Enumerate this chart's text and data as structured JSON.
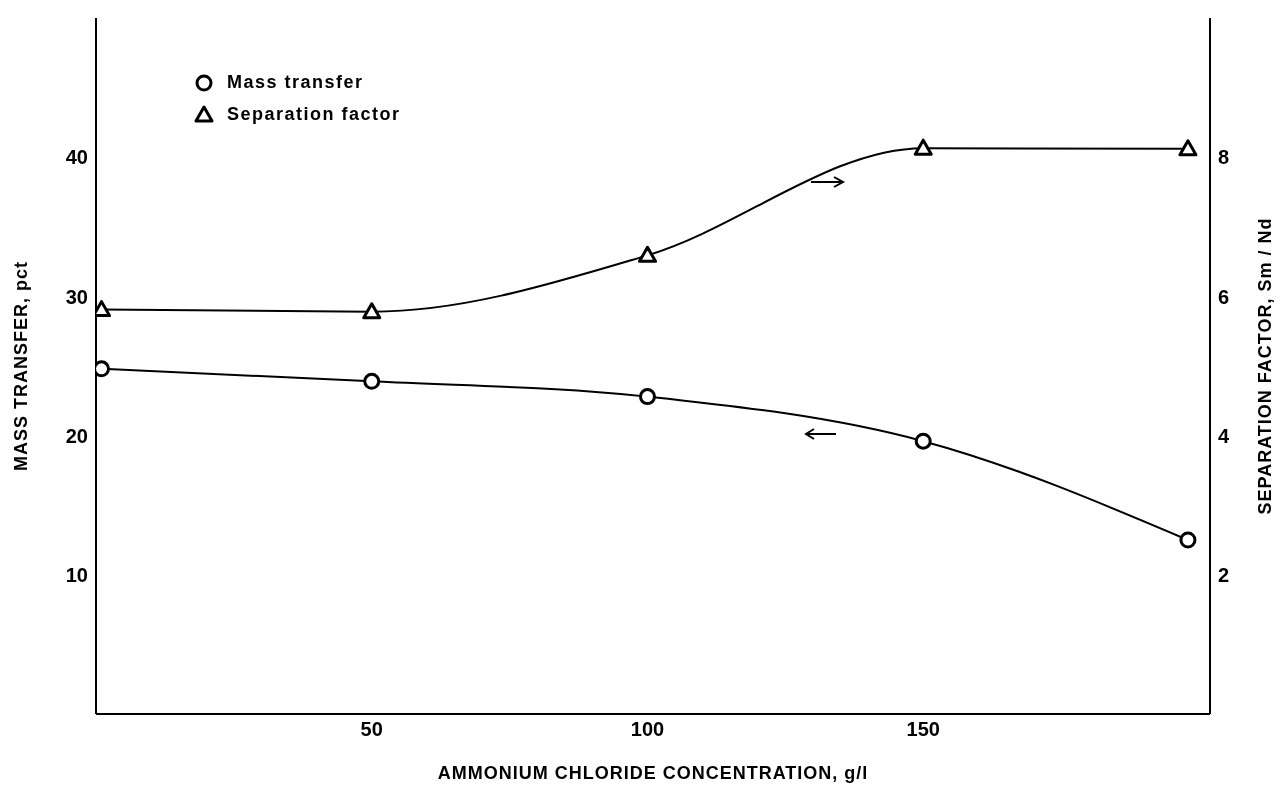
{
  "chart_data": {
    "type": "line",
    "xlabel": "AMMONIUM  CHLORIDE  CONCENTRATION,  g/l",
    "ylabel": "MASS  TRANSFER,  pct",
    "y2label": "SEPARATION  FACTOR,  Sm / Nd",
    "x": [
      1,
      50,
      100,
      150,
      198
    ],
    "series": [
      {
        "name": "Mass transfer",
        "color": "#000000",
        "marker": "circle",
        "values": [
          24.8,
          23.9,
          22.8,
          19.6,
          12.5
        ]
      },
      {
        "name": "Separation factor",
        "color": "#000000",
        "marker": "triangle",
        "axis": "y2",
        "values": [
          5.81,
          5.78,
          6.59,
          8.13,
          8.12
        ]
      }
    ],
    "xlim": [
      0,
      202
    ],
    "xticks": [
      50,
      100,
      150
    ],
    "ylim": [
      0,
      50
    ],
    "yticks": [
      10,
      20,
      30,
      40
    ],
    "y2lim": [
      0,
      10
    ],
    "y2ticks": [
      2,
      4,
      6,
      8
    ],
    "grid": false,
    "legend": "top left",
    "line_style": "solid"
  }
}
